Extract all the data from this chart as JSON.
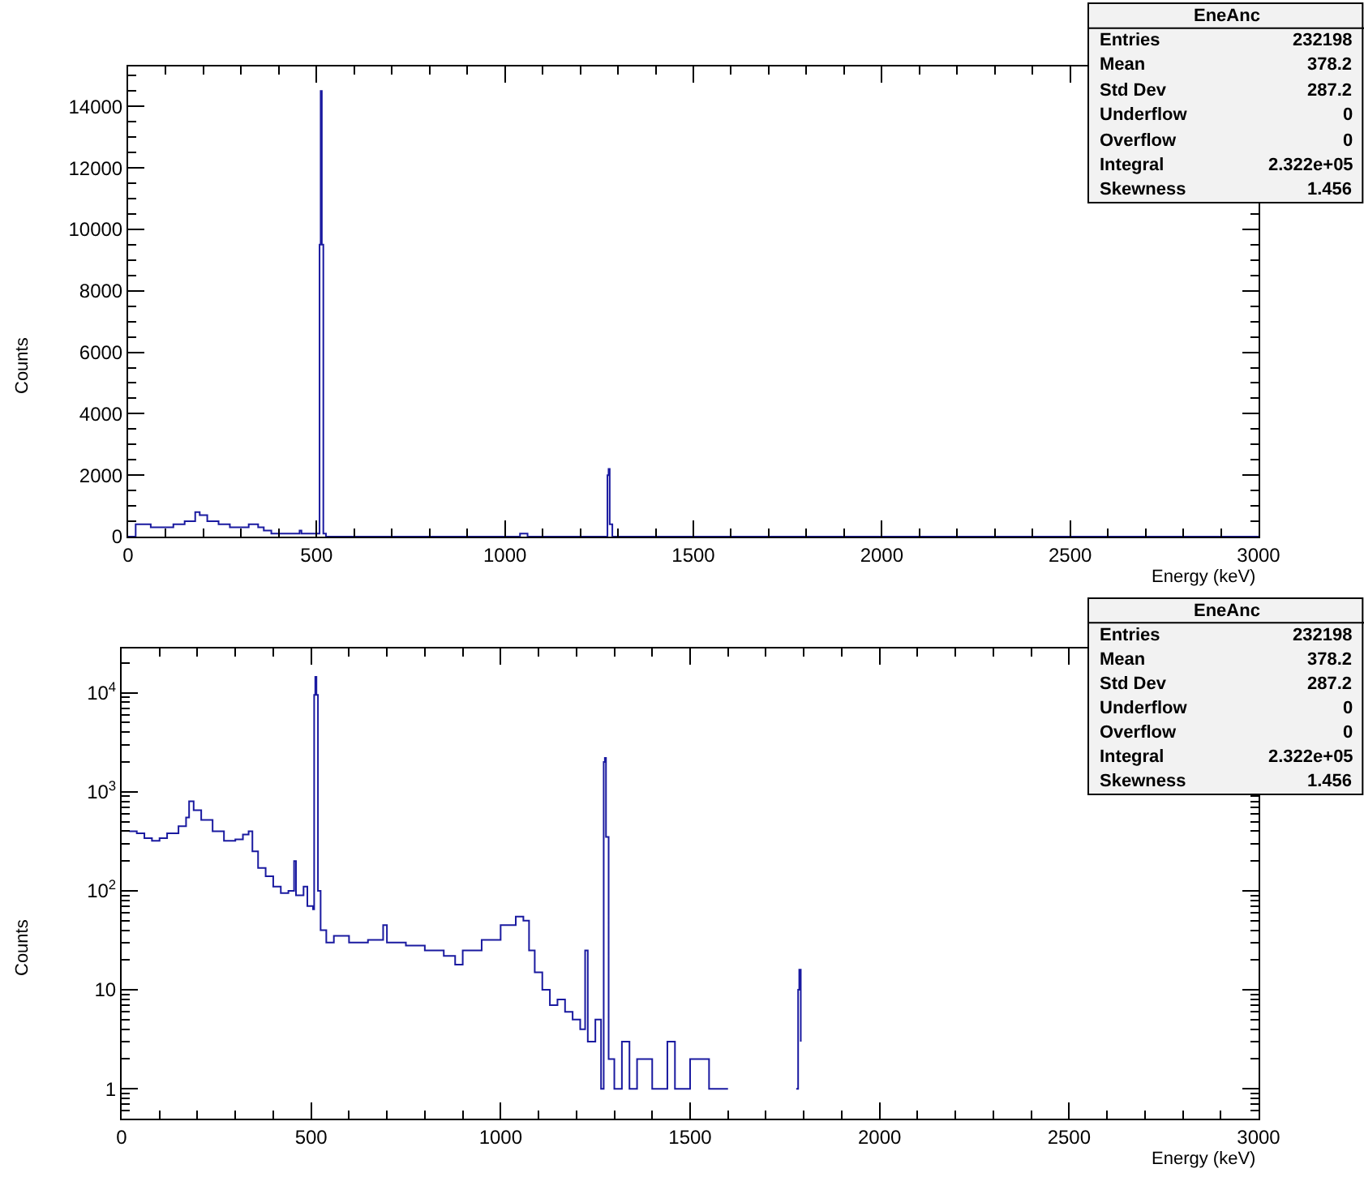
{
  "chart_data": [
    {
      "type": "step",
      "xlabel": "Energy (keV)",
      "ylabel": "Counts",
      "xlim": [
        0,
        3000
      ],
      "xticks": [
        0,
        500,
        1000,
        1500,
        2000,
        2500,
        3000
      ],
      "ylim": [
        0,
        15300
      ],
      "yticks": [
        0,
        2000,
        4000,
        6000,
        8000,
        10000,
        12000,
        14000
      ],
      "annotations": [
        "EneAnc",
        "Entries",
        "232198",
        "Mean",
        "378.2",
        "Std Dev",
        "287.2",
        "Underflow",
        "0",
        "Overflow",
        "0",
        "Integral",
        "2.322e+05",
        "Skewness",
        "1.456"
      ],
      "series": [
        {
          "color": "#1a1aa0",
          "x": [
            0,
            20,
            40,
            60,
            80,
            100,
            120,
            150,
            170,
            178,
            190,
            210,
            240,
            270,
            300,
            320,
            335,
            345,
            360,
            380,
            400,
            420,
            440,
            455,
            460,
            480,
            490,
            505,
            508,
            511,
            514,
            518,
            525,
            540,
            560,
            600,
            650,
            690,
            700,
            750,
            800,
            850,
            880,
            900,
            950,
            1000,
            1040,
            1060,
            1075,
            1090,
            1110,
            1130,
            1150,
            1170,
            1190,
            1210,
            1223,
            1230,
            1250,
            1265,
            1272,
            1275,
            1278,
            1285,
            1300,
            1320,
            1340,
            1360,
            1400,
            1440,
            1460,
            1500,
            1550,
            1600,
            1610,
            1780,
            1785,
            1788,
            1792,
            1796,
            3000
          ],
          "values": [
            0,
            400,
            400,
            300,
            300,
            300,
            400,
            500,
            500,
            800,
            700,
            500,
            400,
            300,
            300,
            400,
            400,
            300,
            200,
            100,
            100,
            100,
            100,
            200,
            100,
            100,
            100,
            100,
            9500,
            14500,
            9500,
            100,
            0,
            0,
            0,
            0,
            0,
            0,
            0,
            0,
            0,
            0,
            0,
            0,
            0,
            0,
            100,
            0,
            0,
            0,
            0,
            0,
            0,
            0,
            0,
            0,
            0,
            0,
            0,
            0,
            2000,
            2200,
            400,
            0,
            0,
            0,
            0,
            0,
            0,
            0,
            0,
            0,
            0,
            0,
            0,
            0,
            0,
            0,
            0,
            0,
            0
          ]
        }
      ]
    },
    {
      "type": "step",
      "xlabel": "Energy (keV)",
      "ylabel": "Counts",
      "xlim": [
        0,
        3000
      ],
      "xticks": [
        0,
        500,
        1000,
        1500,
        2000,
        2500,
        3000
      ],
      "ylim": [
        0.5,
        28000
      ],
      "yticks": [
        1,
        10,
        {
          "value": 100,
          "label": "10$^{2}$"
        },
        {
          "value": 1000,
          "label": "10$^{3}$"
        },
        {
          "value": 10000,
          "label": "10$^{4}$"
        }
      ],
      "log": "y",
      "annotations": [
        "EneAnc",
        "Entries",
        "232198",
        "Mean",
        "378.2",
        "Std Dev",
        "287.2",
        "Underflow",
        "0",
        "Overflow",
        "0",
        "Integral",
        "2.322e+05",
        "Skewness",
        "1.456"
      ],
      "series": [
        {
          "color": "#1a1aa0",
          "x": [
            20,
            40,
            60,
            80,
            100,
            120,
            150,
            170,
            178,
            190,
            210,
            240,
            270,
            300,
            320,
            335,
            345,
            360,
            380,
            400,
            420,
            440,
            455,
            460,
            480,
            490,
            505,
            508,
            511,
            514,
            518,
            525,
            540,
            560,
            600,
            650,
            690,
            700,
            750,
            800,
            850,
            880,
            900,
            950,
            1000,
            1040,
            1060,
            1075,
            1090,
            1110,
            1130,
            1150,
            1170,
            1190,
            1210,
            1223,
            1230,
            1250,
            1265,
            1272,
            1275,
            1278,
            1285,
            1300,
            1320,
            1340,
            1360,
            1400,
            1440,
            1460,
            1500,
            1550,
            1600,
            1610,
            1780,
            1785,
            1788,
            1792
          ],
          "values": [
            400,
            380,
            340,
            320,
            340,
            380,
            450,
            550,
            800,
            650,
            520,
            400,
            320,
            330,
            370,
            400,
            250,
            170,
            140,
            110,
            95,
            100,
            200,
            90,
            110,
            70,
            65,
            9500,
            14500,
            9500,
            100,
            40,
            30,
            35,
            30,
            32,
            45,
            30,
            28,
            25,
            22,
            18,
            25,
            32,
            45,
            55,
            50,
            25,
            15,
            10,
            7,
            8,
            6,
            5,
            4,
            25,
            3,
            5,
            1,
            2000,
            2200,
            350,
            2,
            1,
            3,
            1,
            2,
            1,
            3,
            1,
            2,
            1,
            1,
            null,
            1,
            10,
            16,
            3
          ]
        }
      ]
    }
  ]
}
